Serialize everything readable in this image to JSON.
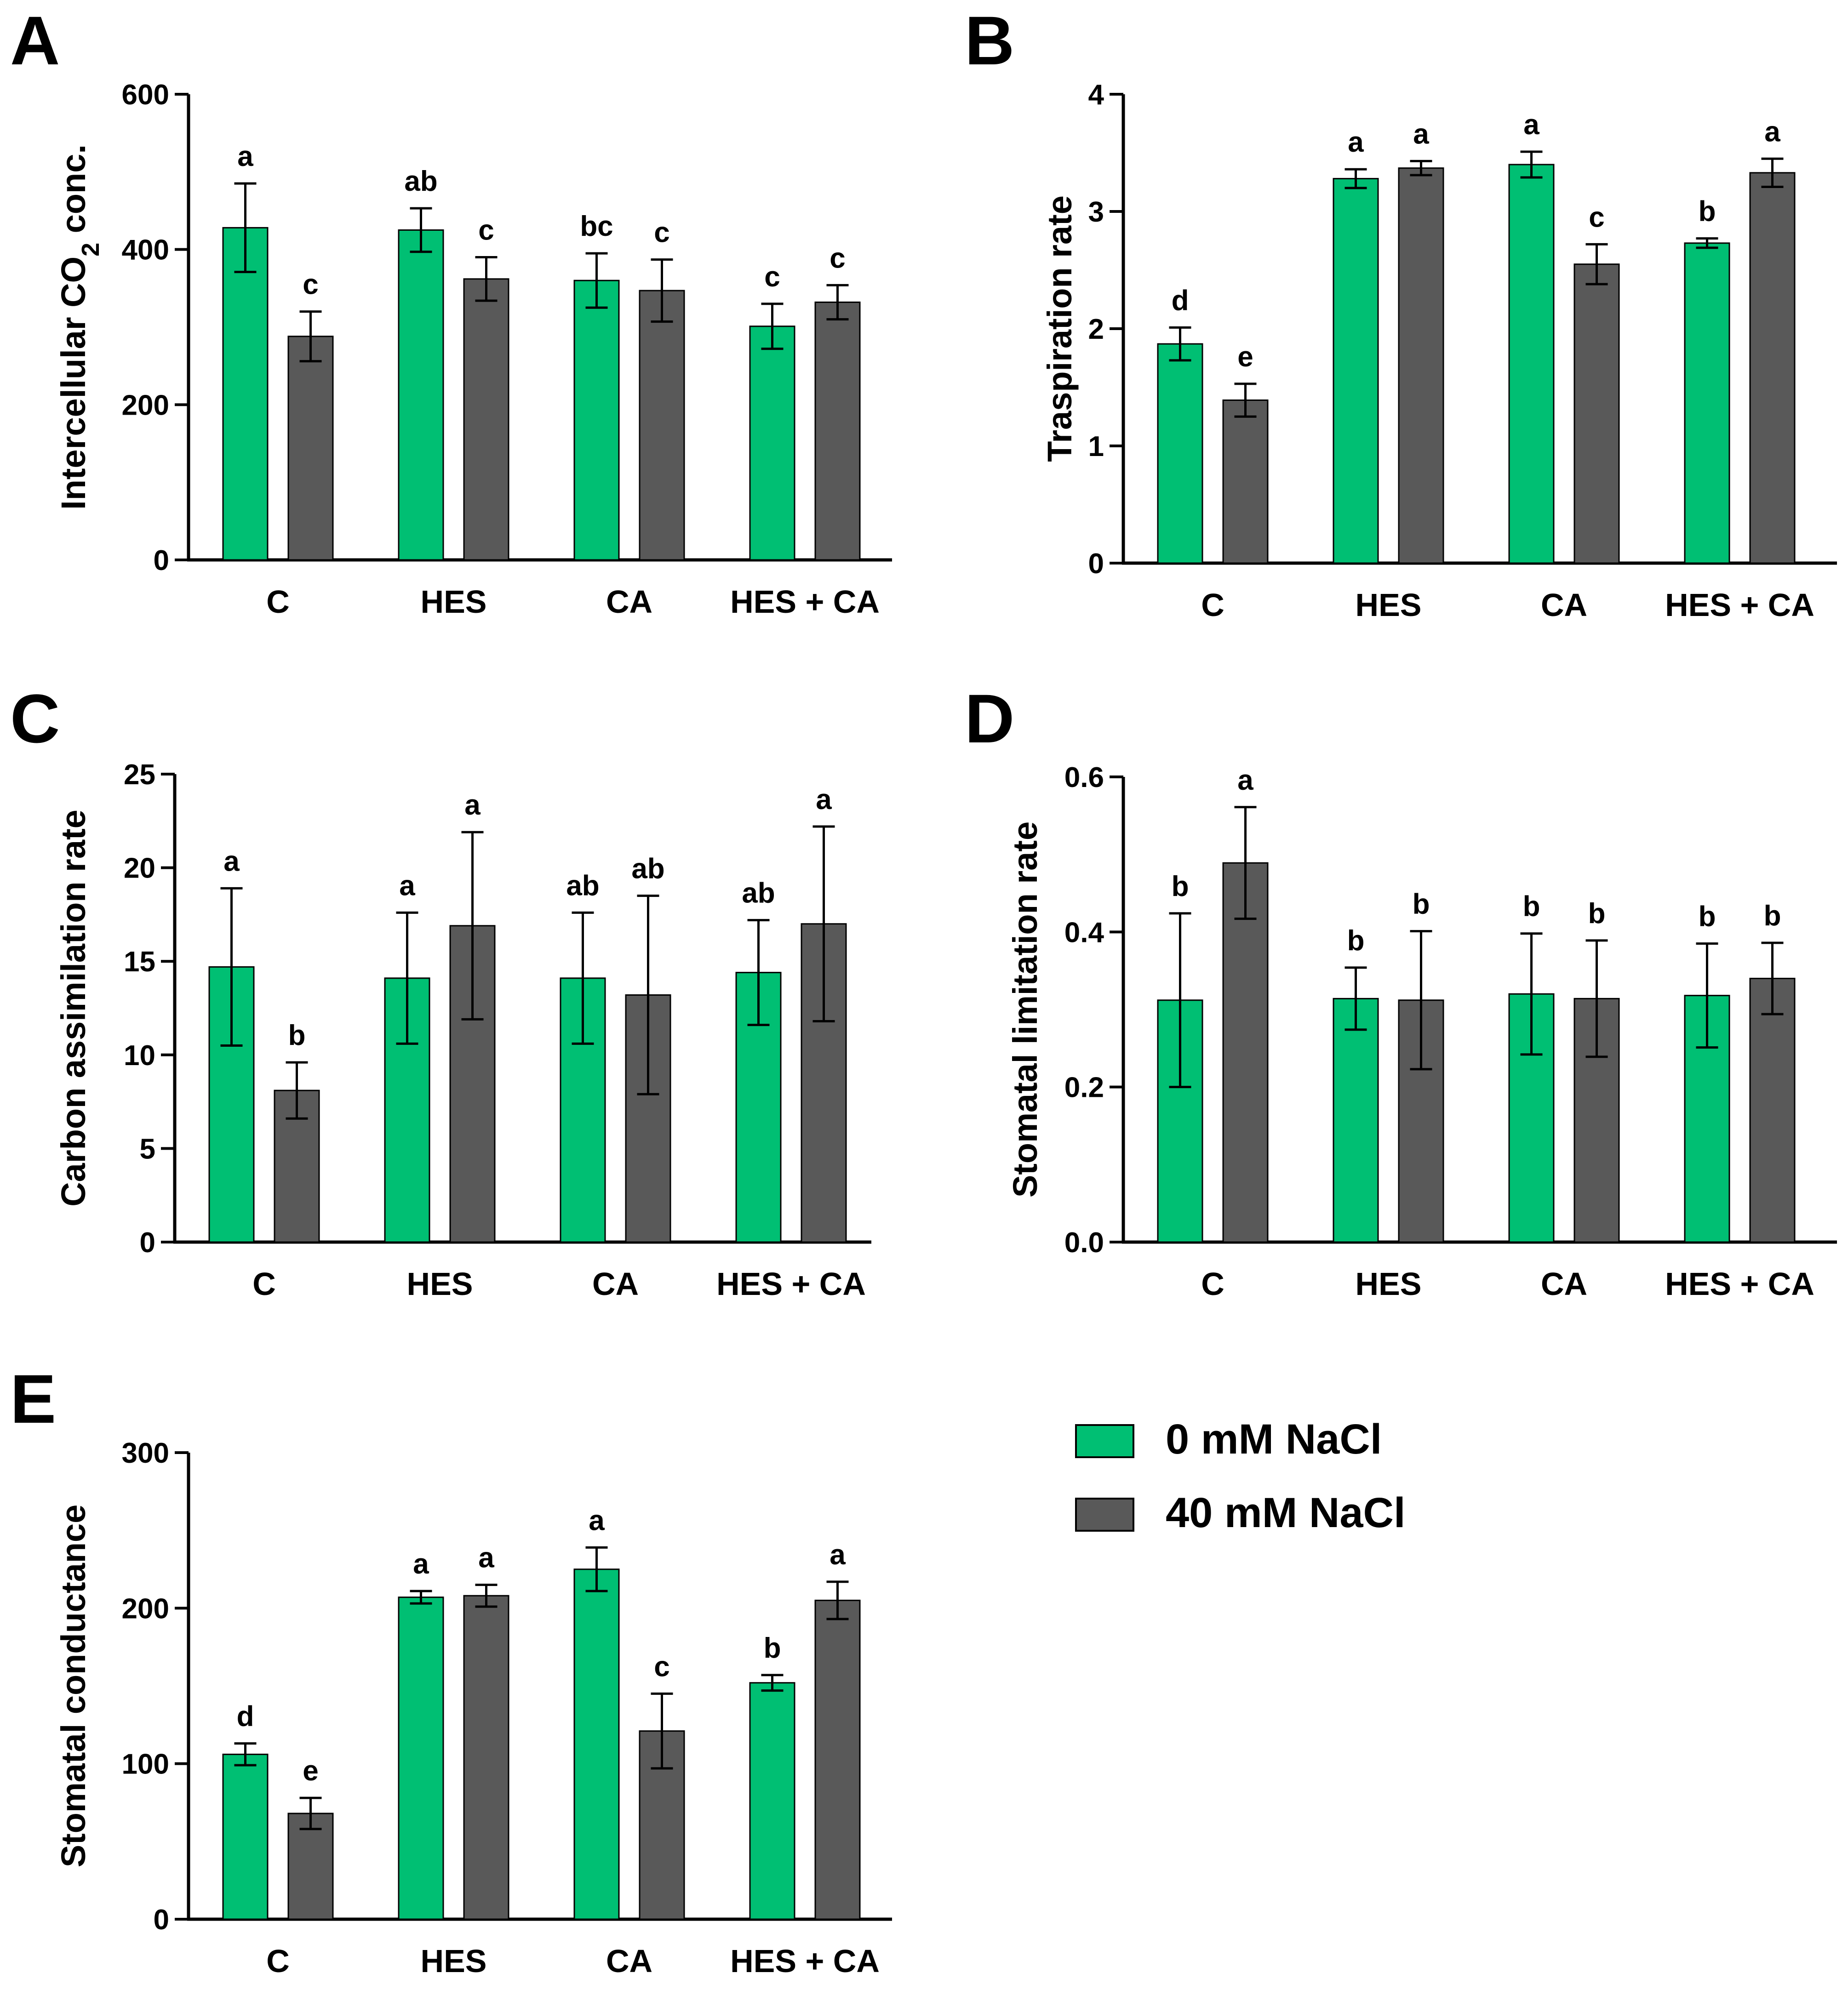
{
  "colors": {
    "series_0": "#00bf73",
    "series_1": "#595959"
  },
  "legend": [
    {
      "name": "0 mM NaCl",
      "color": "#00bf73"
    },
    {
      "name": "40 mM NaCl",
      "color": "#595959"
    }
  ],
  "chart_data": [
    {
      "panel": "A",
      "type": "bar",
      "ylabel": "Intercellular CO2 conc.",
      "ylabel_main": "Intercellular CO",
      "ylabel_sub": "2",
      "ylabel_tail": " conc.",
      "ylim": [
        0,
        600
      ],
      "yticks": [
        0,
        200,
        400,
        600
      ],
      "ytick_labels": [
        "0",
        "200",
        "400",
        "600"
      ],
      "categories": [
        "C",
        "HES",
        "CA",
        "HES + CA"
      ],
      "series": [
        {
          "name": "0 mM NaCl",
          "values": [
            428,
            425,
            360,
            301
          ],
          "errors": [
            57,
            28,
            35,
            29
          ],
          "letters": [
            "a",
            "ab",
            "bc",
            "c"
          ]
        },
        {
          "name": "40 mM NaCl",
          "values": [
            288,
            362,
            347,
            332
          ],
          "errors": [
            32,
            28,
            40,
            22
          ],
          "letters": [
            "c",
            "c",
            "c",
            "c"
          ]
        }
      ]
    },
    {
      "panel": "B",
      "type": "bar",
      "ylabel": "Traspiration rate",
      "ylim": [
        0,
        4
      ],
      "yticks": [
        0,
        1,
        2,
        3,
        4
      ],
      "ytick_labels": [
        "0",
        "1",
        "2",
        "3",
        "4"
      ],
      "categories": [
        "C",
        "HES",
        "CA",
        "HES + CA"
      ],
      "series": [
        {
          "name": "0 mM NaCl",
          "values": [
            1.87,
            3.28,
            3.4,
            2.73
          ],
          "errors": [
            0.14,
            0.08,
            0.11,
            0.04
          ],
          "letters": [
            "d",
            "a",
            "a",
            "b"
          ]
        },
        {
          "name": "40 mM NaCl",
          "values": [
            1.39,
            3.37,
            2.55,
            3.33
          ],
          "errors": [
            0.14,
            0.06,
            0.17,
            0.12
          ],
          "letters": [
            "e",
            "a",
            "c",
            "a"
          ]
        }
      ]
    },
    {
      "panel": "C",
      "type": "bar",
      "ylabel": "Carbon assimilation rate",
      "ylim": [
        0,
        25
      ],
      "yticks": [
        0,
        5,
        10,
        15,
        20,
        25
      ],
      "ytick_labels": [
        "0",
        "5",
        "10",
        "15",
        "20",
        "25"
      ],
      "categories": [
        "C",
        "HES",
        "CA",
        "HES + CA"
      ],
      "series": [
        {
          "name": "0 mM NaCl",
          "values": [
            14.7,
            14.1,
            14.1,
            14.4
          ],
          "errors": [
            4.2,
            3.5,
            3.5,
            2.8
          ],
          "letters": [
            "a",
            "a",
            "ab",
            "ab"
          ]
        },
        {
          "name": "40 mM NaCl",
          "values": [
            8.1,
            16.9,
            13.2,
            17.0
          ],
          "errors": [
            1.5,
            5.0,
            5.3,
            5.2
          ],
          "letters": [
            "b",
            "a",
            "ab",
            "a"
          ]
        }
      ]
    },
    {
      "panel": "D",
      "type": "bar",
      "ylabel": "Stomatal limitation rate",
      "ylim": [
        0,
        0.6
      ],
      "yticks": [
        0,
        0.2,
        0.4,
        0.6
      ],
      "ytick_labels": [
        "0.0",
        "0.2",
        "0.4",
        "0.6"
      ],
      "categories": [
        "C",
        "HES",
        "CA",
        "HES + CA"
      ],
      "series": [
        {
          "name": "0 mM NaCl",
          "values": [
            0.312,
            0.314,
            0.32,
            0.318
          ],
          "errors": [
            0.112,
            0.04,
            0.078,
            0.067
          ],
          "letters": [
            "b",
            "b",
            "b",
            "b"
          ]
        },
        {
          "name": "40 mM NaCl",
          "values": [
            0.489,
            0.312,
            0.314,
            0.34
          ],
          "errors": [
            0.072,
            0.089,
            0.075,
            0.046
          ],
          "letters": [
            "a",
            "b",
            "b",
            "b"
          ]
        }
      ]
    },
    {
      "panel": "E",
      "type": "bar",
      "ylabel": "Stomatal conductance",
      "ylim": [
        0,
        300
      ],
      "yticks": [
        0,
        100,
        200,
        300
      ],
      "ytick_labels": [
        "0",
        "100",
        "200",
        "300"
      ],
      "categories": [
        "C",
        "HES",
        "CA",
        "HES + CA"
      ],
      "series": [
        {
          "name": "0 mM NaCl",
          "values": [
            106,
            207,
            225,
            152
          ],
          "errors": [
            7,
            4,
            14,
            5
          ],
          "letters": [
            "d",
            "a",
            "a",
            "b"
          ]
        },
        {
          "name": "40 mM NaCl",
          "values": [
            68,
            208,
            121,
            205
          ],
          "errors": [
            10,
            7,
            24,
            12
          ],
          "letters": [
            "e",
            "a",
            "c",
            "a"
          ]
        }
      ]
    }
  ]
}
